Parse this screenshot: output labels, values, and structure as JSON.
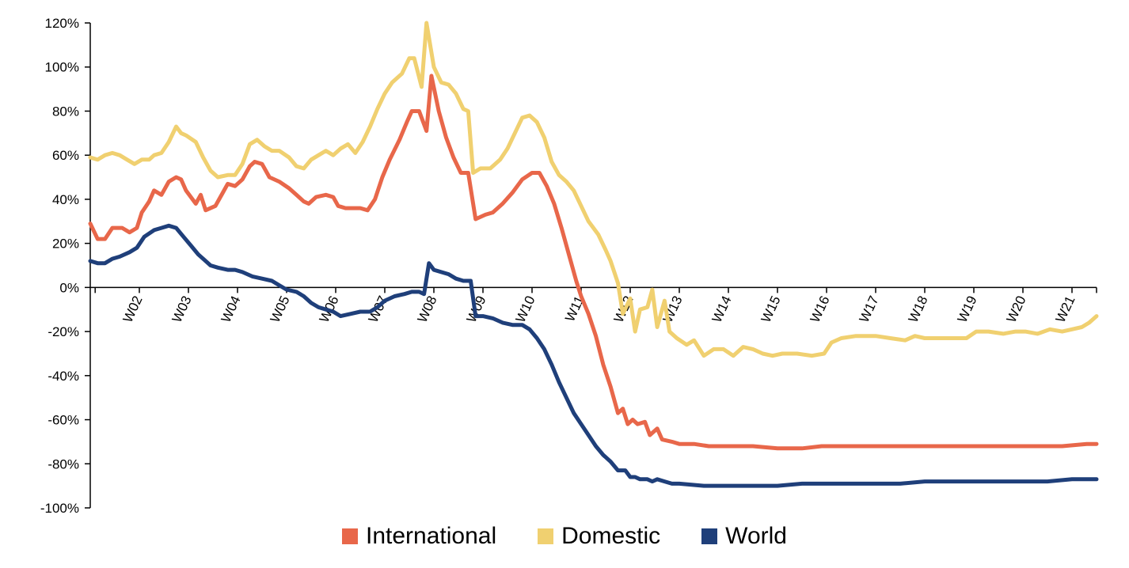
{
  "chart_data": {
    "type": "line",
    "title": "",
    "xlabel": "",
    "ylabel": "",
    "xlim": [
      1,
      21.5
    ],
    "ylim": [
      -100,
      120
    ],
    "grid": false,
    "legend_position": "bottom-center",
    "x_ticks": [
      "W02",
      "W03",
      "W04",
      "W05",
      "W06",
      "W07",
      "W08",
      "W09",
      "W10",
      "W11",
      "W12",
      "W13",
      "W14",
      "W15",
      "W16",
      "W17",
      "W18",
      "W19",
      "W20",
      "W21"
    ],
    "x_tick_values": [
      2,
      3,
      4,
      5,
      6,
      7,
      8,
      9,
      10,
      11,
      12,
      13,
      14,
      15,
      16,
      17,
      18,
      19,
      20,
      21
    ],
    "y_ticks": [
      -100,
      -80,
      -60,
      -40,
      -20,
      0,
      20,
      40,
      60,
      80,
      100,
      120
    ],
    "y_tick_labels": [
      "-100%",
      "-80%",
      "-60%",
      "-40%",
      "-20%",
      "0%",
      "20%",
      "40%",
      "60%",
      "80%",
      "100%",
      "120%"
    ],
    "series": [
      {
        "name": "International",
        "color": "#e8674a",
        "points": [
          [
            1.0,
            29
          ],
          [
            1.15,
            22
          ],
          [
            1.3,
            22
          ],
          [
            1.45,
            27
          ],
          [
            1.65,
            27
          ],
          [
            1.8,
            25
          ],
          [
            1.95,
            27
          ],
          [
            2.05,
            34
          ],
          [
            2.2,
            39
          ],
          [
            2.3,
            44
          ],
          [
            2.45,
            42
          ],
          [
            2.6,
            48
          ],
          [
            2.75,
            50
          ],
          [
            2.85,
            49
          ],
          [
            2.95,
            44
          ],
          [
            3.15,
            38
          ],
          [
            3.25,
            42
          ],
          [
            3.35,
            35
          ],
          [
            3.55,
            37
          ],
          [
            3.7,
            43
          ],
          [
            3.8,
            47
          ],
          [
            3.95,
            46
          ],
          [
            4.1,
            49
          ],
          [
            4.25,
            55
          ],
          [
            4.35,
            57
          ],
          [
            4.5,
            56
          ],
          [
            4.65,
            50
          ],
          [
            4.85,
            48
          ],
          [
            5.05,
            45
          ],
          [
            5.2,
            42
          ],
          [
            5.35,
            39
          ],
          [
            5.45,
            38
          ],
          [
            5.6,
            41
          ],
          [
            5.8,
            42
          ],
          [
            5.95,
            41
          ],
          [
            6.05,
            37
          ],
          [
            6.2,
            36
          ],
          [
            6.4,
            36
          ],
          [
            6.5,
            36
          ],
          [
            6.65,
            35
          ],
          [
            6.8,
            40
          ],
          [
            6.95,
            50
          ],
          [
            7.1,
            58
          ],
          [
            7.3,
            67
          ],
          [
            7.45,
            75
          ],
          [
            7.55,
            80
          ],
          [
            7.7,
            80
          ],
          [
            7.85,
            71
          ],
          [
            7.95,
            96
          ],
          [
            8.1,
            80
          ],
          [
            8.25,
            68
          ],
          [
            8.4,
            59
          ],
          [
            8.55,
            52
          ],
          [
            8.7,
            52
          ],
          [
            8.85,
            31
          ],
          [
            9.05,
            33
          ],
          [
            9.2,
            34
          ],
          [
            9.4,
            38
          ],
          [
            9.6,
            43
          ],
          [
            9.8,
            49
          ],
          [
            10.0,
            52
          ],
          [
            10.15,
            52
          ],
          [
            10.3,
            46
          ],
          [
            10.45,
            38
          ],
          [
            10.6,
            27
          ],
          [
            10.75,
            15
          ],
          [
            10.9,
            3
          ],
          [
            11.0,
            -4
          ],
          [
            11.15,
            -12
          ],
          [
            11.3,
            -22
          ],
          [
            11.45,
            -35
          ],
          [
            11.6,
            -45
          ],
          [
            11.75,
            -57
          ],
          [
            11.85,
            -55
          ],
          [
            11.95,
            -62
          ],
          [
            12.05,
            -60
          ],
          [
            12.15,
            -62
          ],
          [
            12.3,
            -61
          ],
          [
            12.4,
            -67
          ],
          [
            12.55,
            -64
          ],
          [
            12.65,
            -69
          ],
          [
            12.85,
            -70
          ],
          [
            13.0,
            -71
          ],
          [
            13.3,
            -71
          ],
          [
            13.6,
            -72
          ],
          [
            14.0,
            -72
          ],
          [
            14.5,
            -72
          ],
          [
            15.0,
            -73
          ],
          [
            15.5,
            -73
          ],
          [
            15.9,
            -72
          ],
          [
            16.3,
            -72
          ],
          [
            16.8,
            -72
          ],
          [
            17.3,
            -72
          ],
          [
            17.8,
            -72
          ],
          [
            18.3,
            -72
          ],
          [
            18.8,
            -72
          ],
          [
            19.3,
            -72
          ],
          [
            19.8,
            -72
          ],
          [
            20.3,
            -72
          ],
          [
            20.8,
            -72
          ],
          [
            21.3,
            -71
          ],
          [
            21.5,
            -71
          ]
        ]
      },
      {
        "name": "Domestic",
        "color": "#f0d070",
        "points": [
          [
            1.0,
            59
          ],
          [
            1.15,
            58
          ],
          [
            1.3,
            60
          ],
          [
            1.45,
            61
          ],
          [
            1.6,
            60
          ],
          [
            1.75,
            58
          ],
          [
            1.9,
            56
          ],
          [
            2.05,
            58
          ],
          [
            2.2,
            58
          ],
          [
            2.3,
            60
          ],
          [
            2.45,
            61
          ],
          [
            2.6,
            66
          ],
          [
            2.75,
            73
          ],
          [
            2.85,
            70
          ],
          [
            2.95,
            69
          ],
          [
            3.15,
            66
          ],
          [
            3.3,
            59
          ],
          [
            3.45,
            53
          ],
          [
            3.6,
            50
          ],
          [
            3.8,
            51
          ],
          [
            3.95,
            51
          ],
          [
            4.1,
            56
          ],
          [
            4.25,
            65
          ],
          [
            4.4,
            67
          ],
          [
            4.55,
            64
          ],
          [
            4.7,
            62
          ],
          [
            4.85,
            62
          ],
          [
            5.05,
            59
          ],
          [
            5.2,
            55
          ],
          [
            5.35,
            54
          ],
          [
            5.5,
            58
          ],
          [
            5.65,
            60
          ],
          [
            5.8,
            62
          ],
          [
            5.95,
            60
          ],
          [
            6.1,
            63
          ],
          [
            6.25,
            65
          ],
          [
            6.4,
            61
          ],
          [
            6.55,
            66
          ],
          [
            6.7,
            73
          ],
          [
            6.85,
            81
          ],
          [
            7.0,
            88
          ],
          [
            7.15,
            93
          ],
          [
            7.35,
            97
          ],
          [
            7.5,
            104
          ],
          [
            7.6,
            104
          ],
          [
            7.75,
            91
          ],
          [
            7.85,
            120
          ],
          [
            8.0,
            100
          ],
          [
            8.15,
            93
          ],
          [
            8.3,
            92
          ],
          [
            8.45,
            88
          ],
          [
            8.6,
            81
          ],
          [
            8.7,
            80
          ],
          [
            8.8,
            52
          ],
          [
            8.95,
            54
          ],
          [
            9.15,
            54
          ],
          [
            9.35,
            58
          ],
          [
            9.5,
            63
          ],
          [
            9.65,
            70
          ],
          [
            9.8,
            77
          ],
          [
            9.95,
            78
          ],
          [
            10.1,
            75
          ],
          [
            10.25,
            68
          ],
          [
            10.4,
            57
          ],
          [
            10.55,
            51
          ],
          [
            10.7,
            48
          ],
          [
            10.85,
            44
          ],
          [
            11.0,
            37
          ],
          [
            11.15,
            30
          ],
          [
            11.35,
            24
          ],
          [
            11.5,
            17
          ],
          [
            11.6,
            12
          ],
          [
            11.75,
            2
          ],
          [
            11.85,
            -12
          ],
          [
            12.0,
            -5
          ],
          [
            12.1,
            -20
          ],
          [
            12.2,
            -10
          ],
          [
            12.35,
            -9
          ],
          [
            12.45,
            -1
          ],
          [
            12.55,
            -18
          ],
          [
            12.7,
            -6
          ],
          [
            12.8,
            -20
          ],
          [
            12.95,
            -23
          ],
          [
            13.15,
            -26
          ],
          [
            13.3,
            -24
          ],
          [
            13.5,
            -31
          ],
          [
            13.7,
            -28
          ],
          [
            13.9,
            -28
          ],
          [
            14.1,
            -31
          ],
          [
            14.3,
            -27
          ],
          [
            14.5,
            -28
          ],
          [
            14.7,
            -30
          ],
          [
            14.9,
            -31
          ],
          [
            15.1,
            -30
          ],
          [
            15.4,
            -30
          ],
          [
            15.7,
            -31
          ],
          [
            15.95,
            -30
          ],
          [
            16.1,
            -25
          ],
          [
            16.3,
            -23
          ],
          [
            16.6,
            -22
          ],
          [
            16.85,
            -22
          ],
          [
            17.0,
            -22
          ],
          [
            17.3,
            -23
          ],
          [
            17.6,
            -24
          ],
          [
            17.8,
            -22
          ],
          [
            18.0,
            -23
          ],
          [
            18.3,
            -23
          ],
          [
            18.6,
            -23
          ],
          [
            18.85,
            -23
          ],
          [
            19.05,
            -20
          ],
          [
            19.3,
            -20
          ],
          [
            19.6,
            -21
          ],
          [
            19.85,
            -20
          ],
          [
            20.05,
            -20
          ],
          [
            20.3,
            -21
          ],
          [
            20.55,
            -19
          ],
          [
            20.8,
            -20
          ],
          [
            21.0,
            -19
          ],
          [
            21.2,
            -18
          ],
          [
            21.35,
            -16
          ],
          [
            21.5,
            -13
          ]
        ]
      },
      {
        "name": "World",
        "color": "#1f3f7a",
        "points": [
          [
            1.0,
            12
          ],
          [
            1.15,
            11
          ],
          [
            1.3,
            11
          ],
          [
            1.45,
            13
          ],
          [
            1.6,
            14
          ],
          [
            1.8,
            16
          ],
          [
            1.95,
            18
          ],
          [
            2.1,
            23
          ],
          [
            2.3,
            26
          ],
          [
            2.45,
            27
          ],
          [
            2.6,
            28
          ],
          [
            2.75,
            27
          ],
          [
            2.9,
            23
          ],
          [
            3.05,
            19
          ],
          [
            3.2,
            15
          ],
          [
            3.3,
            13
          ],
          [
            3.45,
            10
          ],
          [
            3.6,
            9
          ],
          [
            3.8,
            8
          ],
          [
            3.95,
            8
          ],
          [
            4.1,
            7
          ],
          [
            4.3,
            5
          ],
          [
            4.5,
            4
          ],
          [
            4.7,
            3
          ],
          [
            4.85,
            1
          ],
          [
            5.0,
            -1
          ],
          [
            5.2,
            -2
          ],
          [
            5.35,
            -4
          ],
          [
            5.5,
            -7
          ],
          [
            5.65,
            -9
          ],
          [
            5.8,
            -10
          ],
          [
            5.95,
            -11
          ],
          [
            6.1,
            -13
          ],
          [
            6.3,
            -12
          ],
          [
            6.5,
            -11
          ],
          [
            6.7,
            -11
          ],
          [
            6.85,
            -9
          ],
          [
            7.0,
            -6
          ],
          [
            7.2,
            -4
          ],
          [
            7.4,
            -3
          ],
          [
            7.55,
            -2
          ],
          [
            7.7,
            -2
          ],
          [
            7.8,
            -3
          ],
          [
            7.9,
            11
          ],
          [
            8.0,
            8
          ],
          [
            8.15,
            7
          ],
          [
            8.3,
            6
          ],
          [
            8.45,
            4
          ],
          [
            8.6,
            3
          ],
          [
            8.75,
            3
          ],
          [
            8.85,
            -13
          ],
          [
            9.0,
            -13
          ],
          [
            9.2,
            -14
          ],
          [
            9.4,
            -16
          ],
          [
            9.6,
            -17
          ],
          [
            9.8,
            -17
          ],
          [
            9.95,
            -19
          ],
          [
            10.1,
            -23
          ],
          [
            10.25,
            -28
          ],
          [
            10.4,
            -35
          ],
          [
            10.55,
            -43
          ],
          [
            10.7,
            -50
          ],
          [
            10.85,
            -57
          ],
          [
            11.0,
            -62
          ],
          [
            11.15,
            -67
          ],
          [
            11.3,
            -72
          ],
          [
            11.45,
            -76
          ],
          [
            11.6,
            -79
          ],
          [
            11.75,
            -83
          ],
          [
            11.9,
            -83
          ],
          [
            12.0,
            -86
          ],
          [
            12.1,
            -86
          ],
          [
            12.2,
            -87
          ],
          [
            12.35,
            -87
          ],
          [
            12.45,
            -88
          ],
          [
            12.55,
            -87
          ],
          [
            12.7,
            -88
          ],
          [
            12.85,
            -89
          ],
          [
            13.0,
            -89
          ],
          [
            13.5,
            -90
          ],
          [
            14.0,
            -90
          ],
          [
            14.5,
            -90
          ],
          [
            15.0,
            -90
          ],
          [
            15.5,
            -89
          ],
          [
            16.0,
            -89
          ],
          [
            16.5,
            -89
          ],
          [
            17.0,
            -89
          ],
          [
            17.5,
            -89
          ],
          [
            18.0,
            -88
          ],
          [
            18.5,
            -88
          ],
          [
            19.0,
            -88
          ],
          [
            19.5,
            -88
          ],
          [
            20.0,
            -88
          ],
          [
            20.5,
            -88
          ],
          [
            21.0,
            -87
          ],
          [
            21.5,
            -87
          ]
        ]
      }
    ]
  }
}
